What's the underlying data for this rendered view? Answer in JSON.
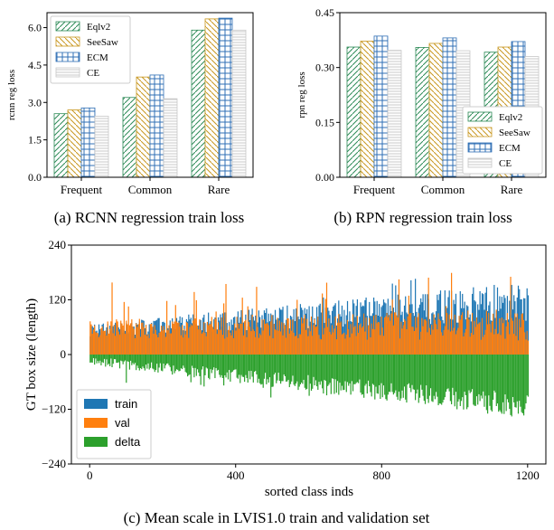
{
  "colors": {
    "eqlv2": "#2e8b57",
    "seesaw": "#c8961e",
    "ecm": "#2f6fb5",
    "ce": "#c8c8c8",
    "train": "#1f77b4",
    "val": "#ff7f0e",
    "delta": "#2ca02c"
  },
  "captions": {
    "a": "(a) RCNN regression train loss",
    "b": "(b) RPN regression train loss",
    "c": "(c) Mean scale in LVIS1.0 train and validation set"
  },
  "chart_data": [
    {
      "type": "bar",
      "ylabel": "rcnn reg loss",
      "xlabel": "",
      "categories": [
        "Frequent",
        "Common",
        "Rare"
      ],
      "yticks": [
        "0.0",
        "1.5",
        "3.0",
        "4.5",
        "6.0"
      ],
      "ylim": [
        0,
        6.6
      ],
      "legend_position": "upper-left",
      "series": [
        {
          "name": "Eqlv2",
          "values": [
            2.55,
            3.2,
            5.9
          ]
        },
        {
          "name": "SeeSaw",
          "values": [
            2.7,
            4.02,
            6.35
          ]
        },
        {
          "name": "ECM",
          "values": [
            2.78,
            4.1,
            6.38
          ]
        },
        {
          "name": "CE",
          "values": [
            2.45,
            3.15,
            5.9
          ]
        }
      ]
    },
    {
      "type": "bar",
      "ylabel": "rpn reg loss",
      "xlabel": "",
      "categories": [
        "Frequent",
        "Common",
        "Rare"
      ],
      "yticks": [
        "0.00",
        "0.15",
        "0.30",
        "0.45"
      ],
      "ylim": [
        0,
        0.45
      ],
      "legend_position": "lower-right",
      "series": [
        {
          "name": "Eqlv2",
          "values": [
            0.356,
            0.355,
            0.342
          ]
        },
        {
          "name": "SeeSaw",
          "values": [
            0.372,
            0.366,
            0.356
          ]
        },
        {
          "name": "ECM",
          "values": [
            0.386,
            0.381,
            0.371
          ]
        },
        {
          "name": "CE",
          "values": [
            0.347,
            0.346,
            0.33
          ]
        }
      ]
    },
    {
      "type": "bar",
      "xlabel": "sorted class inds",
      "ylabel": "GT box size (length)",
      "xticks": [
        "0",
        "400",
        "800",
        "1200"
      ],
      "yticks": [
        "240",
        "120",
        "0",
        "−120",
        "−240"
      ],
      "xlim": [
        -50,
        1250
      ],
      "ylim": [
        -240,
        240
      ],
      "legend_position": "lower-left",
      "n_classes": 1203,
      "series": [
        {
          "name": "train",
          "trend_start": 48,
          "trend_end": 100
        },
        {
          "name": "val",
          "trend_start": 50,
          "trend_end": 55
        },
        {
          "name": "delta",
          "trend_start": -5,
          "trend_end": -85
        }
      ]
    }
  ]
}
